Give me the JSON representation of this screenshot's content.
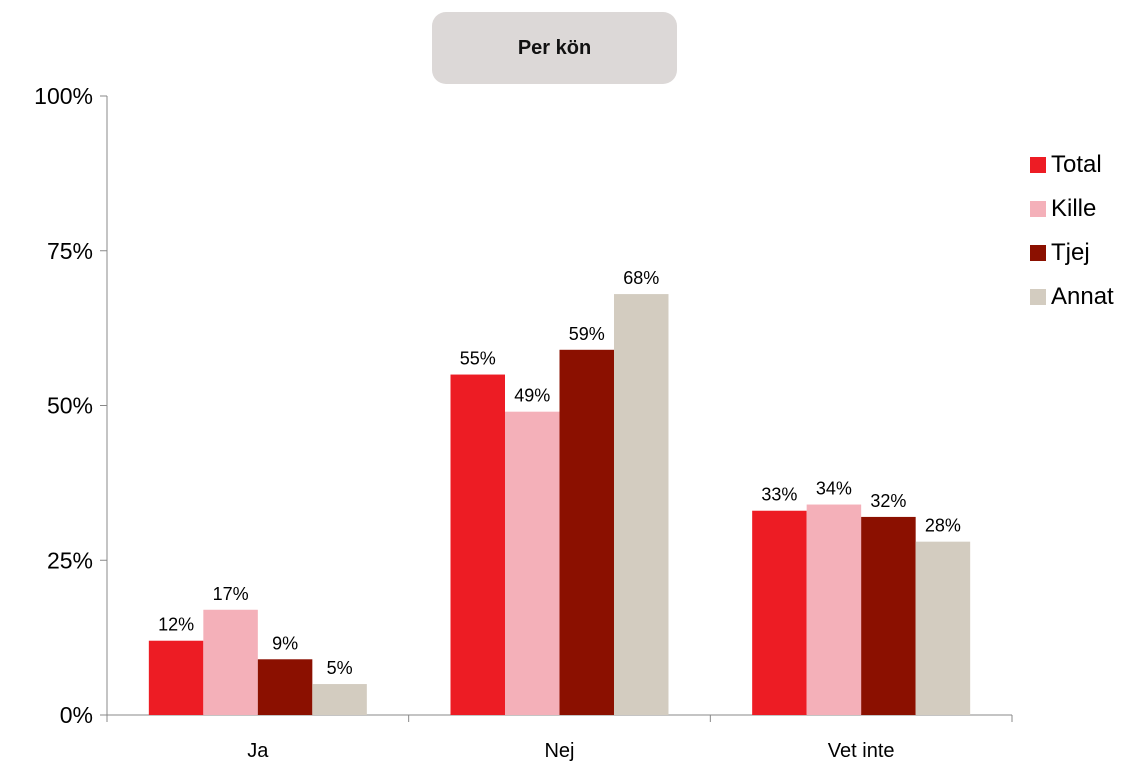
{
  "chart_data": {
    "type": "bar",
    "title": "Per kön",
    "categories": [
      "Ja",
      "Nej",
      "Vet inte"
    ],
    "series": [
      {
        "name": "Total",
        "color": "#ed1c24",
        "values": [
          12,
          55,
          33
        ],
        "labels": [
          "12%",
          "55%",
          "33%"
        ]
      },
      {
        "name": "Kille",
        "color": "#f4b0b9",
        "values": [
          17,
          49,
          34
        ],
        "labels": [
          "17%",
          "49%",
          "34%"
        ]
      },
      {
        "name": "Tjej",
        "color": "#8b1000",
        "values": [
          9,
          59,
          32
        ],
        "labels": [
          "9%",
          "59%",
          "32%"
        ]
      },
      {
        "name": "Annat",
        "color": "#d3ccc0",
        "values": [
          5,
          68,
          28
        ],
        "labels": [
          "5%",
          "68%",
          "28%"
        ]
      }
    ],
    "ylim": [
      0,
      100
    ],
    "yticks": [
      0,
      25,
      50,
      75,
      100
    ],
    "ytick_labels": [
      "0%",
      "25%",
      "50%",
      "75%",
      "100%"
    ],
    "grid": false,
    "legend_position": "right"
  }
}
